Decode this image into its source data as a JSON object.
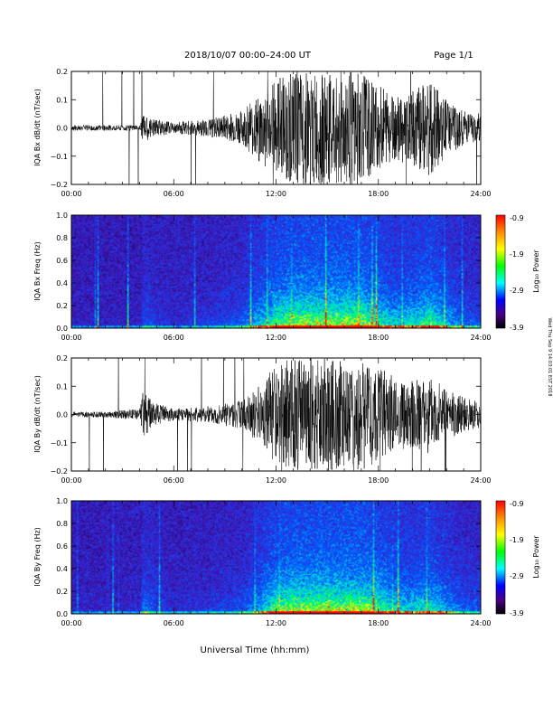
{
  "header": {
    "title": "2018/10/07   00:00–24:00 UT",
    "page": "Page 1/1"
  },
  "footer": {
    "xlabel": "Universal Time (hh:mm)",
    "side_note": "Wed Thu Sep 9 14:03:01 EST 2018"
  },
  "colors": {
    "trace": "#000000",
    "background": "#ffffff",
    "spectrogram_low": "#1a0033",
    "spectrogram_mid": "#3a1ab0",
    "spectrogram_high": "#00e0e0"
  },
  "colorbar": {
    "label": "Log₁₀ Power",
    "ticks": [
      "-0.9",
      "-1.9",
      "-2.9",
      "-3.9"
    ],
    "stops": [
      "#ff0000",
      "#ff8c00",
      "#ffff00",
      "#00ff00",
      "#00ffff",
      "#0000ff",
      "#4b0082",
      "#000000"
    ]
  },
  "chart_data": [
    {
      "type": "line",
      "ylabel": "IQA Bx dB/dt (nT/sec)",
      "x_range": [
        "00:00",
        "24:00"
      ],
      "x_ticks": [
        "00:00",
        "06:00",
        "12:00",
        "18:00",
        "24:00"
      ],
      "ylim": [
        -0.2,
        0.2
      ],
      "y_ticks": [
        "0.2",
        "0.1",
        "0.0",
        "−0.1",
        "−0.2"
      ],
      "envelope_hours": [
        0,
        2,
        4,
        4.2,
        5,
        6,
        8,
        10,
        11,
        12,
        13,
        14,
        15,
        16,
        17,
        18,
        19,
        20,
        21,
        22,
        23,
        24
      ],
      "envelope_amplitude": [
        0.01,
        0.01,
        0.01,
        0.05,
        0.03,
        0.02,
        0.03,
        0.06,
        0.12,
        0.17,
        0.2,
        0.2,
        0.2,
        0.2,
        0.2,
        0.15,
        0.12,
        0.13,
        0.17,
        0.1,
        0.06,
        0.05
      ]
    },
    {
      "type": "heatmap",
      "ylabel": "IQA Bx Freq (Hz)",
      "x_range": [
        "00:00",
        "24:00"
      ],
      "x_ticks": [
        "00:00",
        "06:00",
        "12:00",
        "18:00",
        "24:00"
      ],
      "ylim": [
        0.0,
        1.0
      ],
      "y_ticks": [
        "1.0",
        "0.8",
        "0.6",
        "0.4",
        "0.2",
        "0.0"
      ],
      "zlim": [
        -3.9,
        -0.9
      ]
    },
    {
      "type": "line",
      "ylabel": "IQA By dB/dt (nT/sec)",
      "x_range": [
        "00:00",
        "24:00"
      ],
      "x_ticks": [
        "00:00",
        "06:00",
        "12:00",
        "18:00",
        "24:00"
      ],
      "ylim": [
        -0.2,
        0.2
      ],
      "y_ticks": [
        "0.2",
        "0.1",
        "0.0",
        "−0.1",
        "−0.2"
      ],
      "envelope_hours": [
        0,
        2,
        4,
        4.2,
        5,
        6,
        8,
        10,
        11,
        12,
        13,
        14,
        15,
        16,
        17,
        18,
        19,
        20,
        21,
        22,
        23,
        24
      ],
      "envelope_amplitude": [
        0.01,
        0.01,
        0.02,
        0.08,
        0.04,
        0.02,
        0.03,
        0.05,
        0.1,
        0.18,
        0.2,
        0.2,
        0.2,
        0.2,
        0.2,
        0.17,
        0.13,
        0.12,
        0.14,
        0.09,
        0.06,
        0.05
      ]
    },
    {
      "type": "heatmap",
      "ylabel": "IQA By Freq (Hz)",
      "x_range": [
        "00:00",
        "24:00"
      ],
      "x_ticks": [
        "00:00",
        "06:00",
        "12:00",
        "18:00",
        "24:00"
      ],
      "ylim": [
        0.0,
        1.0
      ],
      "y_ticks": [
        "1.0",
        "0.8",
        "0.6",
        "0.4",
        "0.2",
        "0.0"
      ],
      "zlim": [
        -3.9,
        -0.9
      ]
    }
  ]
}
